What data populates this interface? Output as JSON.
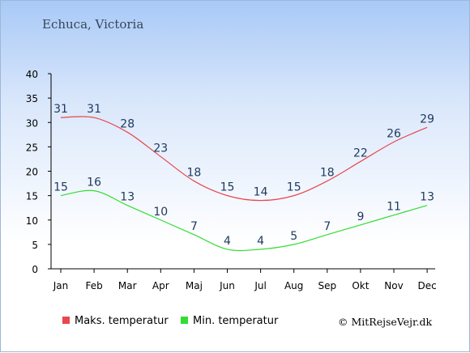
{
  "chart_data": {
    "type": "line",
    "title": "Echuca, Victoria",
    "categories": [
      "Jan",
      "Feb",
      "Mar",
      "Apr",
      "Maj",
      "Jun",
      "Jul",
      "Aug",
      "Sep",
      "Okt",
      "Nov",
      "Dec"
    ],
    "y_ticks": [
      0,
      5,
      10,
      15,
      20,
      25,
      30,
      35,
      40
    ],
    "ylim": [
      0,
      40
    ],
    "grid": false,
    "legend_position": "bottom",
    "series": [
      {
        "name": "Maks. temperatur",
        "color": "#e8474c",
        "values": [
          31,
          31,
          28,
          23,
          18,
          15,
          14,
          15,
          18,
          22,
          26,
          29
        ]
      },
      {
        "name": "Min. temperatur",
        "color": "#33dd33",
        "values": [
          15,
          16,
          13,
          10,
          7,
          4,
          4,
          5,
          7,
          9,
          11,
          13
        ]
      }
    ]
  },
  "credit": "© MitRejseVejr.dk"
}
